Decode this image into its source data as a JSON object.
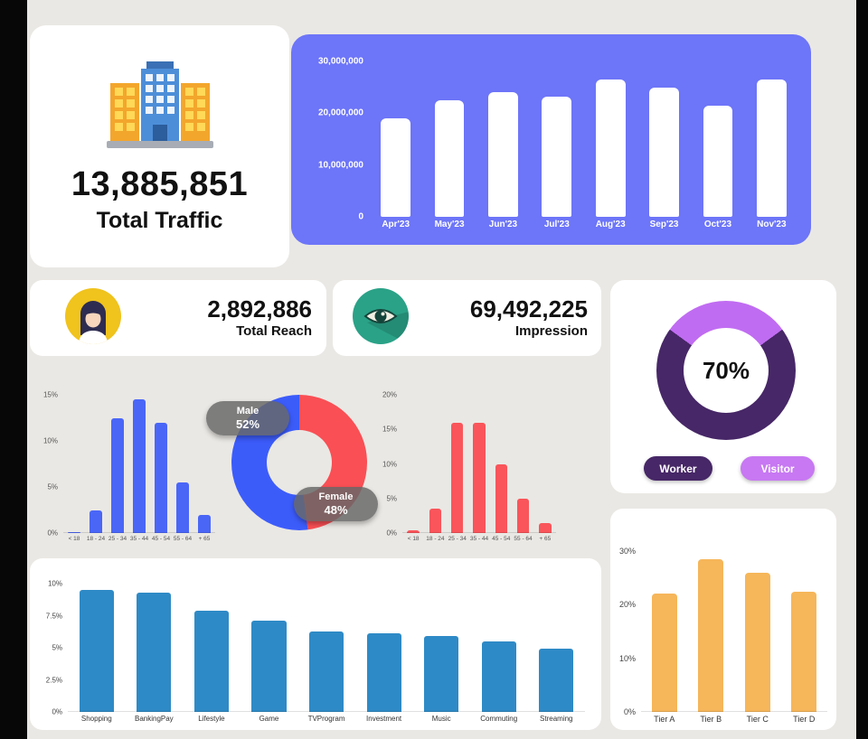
{
  "total_traffic": {
    "value": "13,885,851",
    "label": "Total Traffic"
  },
  "total_reach": {
    "value": "2,892,886",
    "label": "Total Reach"
  },
  "impression": {
    "value": "69,492,225",
    "label": "Impression"
  },
  "palette": {
    "panel_purple": "#6d75f8",
    "male_blue": "#3c5cfa",
    "female_red": "#f94f55",
    "interest_blue": "#2e8ac6",
    "tier_orange": "#f6b65a",
    "worker_purple": "#472767",
    "visitor_violet": "#c06cf2",
    "reach_yellow": "#f0c31d",
    "impression_teal": "#2aa287"
  },
  "chart_data": [
    {
      "id": "monthly-traffic",
      "type": "bar",
      "categories": [
        "Apr'23",
        "May'23",
        "Jun'23",
        "Jul'23",
        "Aug'23",
        "Sep'23",
        "Oct'23",
        "Nov'23"
      ],
      "values": [
        19000000,
        22500000,
        24000000,
        23200000,
        26500000,
        25000000,
        21500000,
        26500000
      ],
      "ylim": [
        0,
        30000000
      ],
      "yticks": [
        {
          "value": 30000000,
          "label": "30,000,000"
        },
        {
          "value": 20000000,
          "label": "20,000,000"
        },
        {
          "value": 10000000,
          "label": "10,000,000"
        },
        {
          "value": 0,
          "label": "0"
        }
      ],
      "bar_color": "#ffffff",
      "bar_width_pct": 55,
      "panel_color": "#6d75f8",
      "grid": false,
      "legend_position": "none"
    },
    {
      "id": "age-distribution-male",
      "type": "bar",
      "categories": [
        "< 18",
        "18 - 24",
        "25 - 34",
        "35 - 44",
        "45 - 54",
        "55 - 64",
        "+ 65"
      ],
      "values": [
        0.1,
        2.5,
        12.5,
        14.5,
        12,
        5.5,
        2
      ],
      "ylim": [
        0,
        15
      ],
      "yticks": [
        {
          "value": 15,
          "label": "15%"
        },
        {
          "value": 10,
          "label": "10%"
        },
        {
          "value": 5,
          "label": "5%"
        },
        {
          "value": 0,
          "label": "0%"
        }
      ],
      "bar_color": "#4a66f7",
      "bar_width_pct": 55
    },
    {
      "id": "age-distribution-female",
      "type": "bar",
      "categories": [
        "< 18",
        "18 - 24",
        "25 - 34",
        "35 - 44",
        "45 - 54",
        "55 - 64",
        "+ 65"
      ],
      "values": [
        0.4,
        3.5,
        16,
        16,
        10,
        5,
        1.5
      ],
      "ylim": [
        0,
        20
      ],
      "yticks": [
        {
          "value": 20,
          "label": "20%"
        },
        {
          "value": 15,
          "label": "15%"
        },
        {
          "value": 10,
          "label": "10%"
        },
        {
          "value": 5,
          "label": "5%"
        },
        {
          "value": 0,
          "label": "0%"
        }
      ],
      "bar_color": "#f9555a",
      "bar_width_pct": 55
    },
    {
      "id": "gender-split",
      "type": "pie",
      "start_angle": 0,
      "segments": [
        {
          "label": "Female",
          "value": 48,
          "color": "#f94f55"
        },
        {
          "label": "Male",
          "value": 52,
          "color": "#3c5cfa"
        }
      ],
      "annotations": [
        {
          "label": "Male",
          "value": "52%"
        },
        {
          "label": "Female",
          "value": "48%"
        }
      ]
    },
    {
      "id": "worker-visitor",
      "type": "pie",
      "start_angle": 306,
      "center_label": "70%",
      "segments": [
        {
          "label": "Visitor",
          "value": 30,
          "color": "#c06cf2"
        },
        {
          "label": "Worker",
          "value": 70,
          "color": "#472767"
        }
      ],
      "legend": [
        {
          "label": "Worker",
          "color": "#472767"
        },
        {
          "label": "Visitor",
          "color": "#c778f2"
        }
      ]
    },
    {
      "id": "interest-categories",
      "type": "bar",
      "categories": [
        "Shopping",
        "BankingPay",
        "Lifestyle",
        "Game",
        "TVProgram",
        "Investment",
        "Music",
        "Commuting",
        "Streaming"
      ],
      "values": [
        9.5,
        9.3,
        7.9,
        7.1,
        6.3,
        6.1,
        5.9,
        5.5,
        4.9
      ],
      "ylim": [
        0,
        10
      ],
      "yticks": [
        {
          "value": 10,
          "label": "10%"
        },
        {
          "value": 7.5,
          "label": "7.5%"
        },
        {
          "value": 5,
          "label": "5%"
        },
        {
          "value": 2.5,
          "label": "2.5%"
        },
        {
          "value": 0,
          "label": "0%"
        }
      ],
      "bar_color": "#2e8ac6",
      "bar_width_pct": 60
    },
    {
      "id": "tiers",
      "type": "bar",
      "categories": [
        "Tier A",
        "Tier B",
        "Tier C",
        "Tier D"
      ],
      "values": [
        22,
        28.5,
        26,
        22.5
      ],
      "ylim": [
        0,
        30
      ],
      "yticks": [
        {
          "value": 30,
          "label": "30%"
        },
        {
          "value": 20,
          "label": "20%"
        },
        {
          "value": 10,
          "label": "10%"
        },
        {
          "value": 0,
          "label": "0%"
        }
      ],
      "bar_color": "#f6b65a",
      "bar_width_pct": 55
    }
  ]
}
